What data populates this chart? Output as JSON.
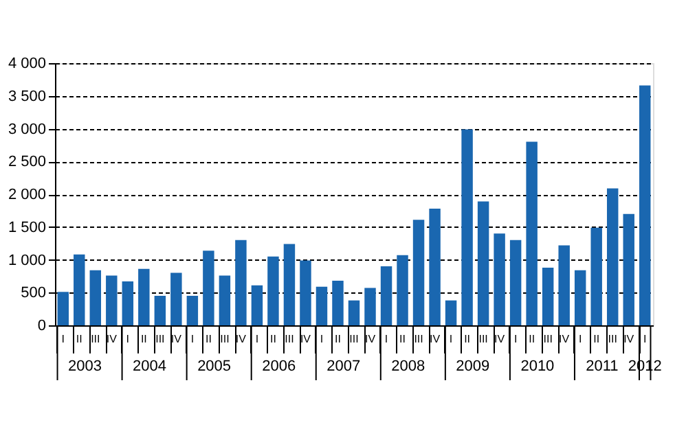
{
  "chart_data": {
    "type": "bar",
    "categories": [
      "I",
      "II",
      "III",
      "IV",
      "I",
      "II",
      "III",
      "IV",
      "I",
      "II",
      "III",
      "IV",
      "I",
      "II",
      "III",
      "IV",
      "I",
      "II",
      "III",
      "IV",
      "I",
      "II",
      "III",
      "IV",
      "I",
      "II",
      "III",
      "IV",
      "I",
      "II",
      "III",
      "IV",
      "I",
      "II",
      "III",
      "IV",
      "I"
    ],
    "values": [
      510,
      1080,
      840,
      760,
      670,
      860,
      450,
      800,
      450,
      1140,
      760,
      1300,
      610,
      1050,
      1240,
      990,
      590,
      680,
      380,
      570,
      900,
      1070,
      1610,
      1780,
      380,
      2990,
      1890,
      1400,
      1300,
      2800,
      880,
      1220,
      840,
      1490,
      2090,
      1700,
      3660
    ],
    "color": "#1a67b0",
    "ylim": [
      0,
      4000
    ],
    "yticks": [
      0,
      500,
      {
        "value": 1000,
        "label": "1 000"
      },
      {
        "value": 1500,
        "label": "1 500"
      },
      {
        "value": 2000,
        "label": "2 000"
      },
      {
        "value": 2500,
        "label": "2 500"
      },
      {
        "value": 3000,
        "label": "3 000"
      },
      {
        "value": 3500,
        "label": "3 500"
      },
      {
        "value": 4000,
        "label": "4 000"
      }
    ],
    "grid": "y",
    "annotations": [
      "2003",
      "2004",
      "2005",
      "2006",
      "2007",
      "2008",
      "2009",
      "2010",
      "2011",
      "2012"
    ]
  }
}
